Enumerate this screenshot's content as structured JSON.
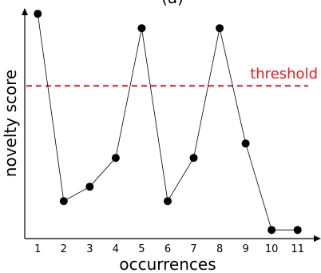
{
  "chart_data": {
    "type": "line",
    "title": "(a)",
    "xlabel": "occurrences",
    "ylabel": "novelty score",
    "x": [
      1,
      2,
      3,
      4,
      5,
      6,
      7,
      8,
      9,
      10,
      11
    ],
    "xlim": [
      0.5,
      11.9
    ],
    "ylim": [
      0,
      8
    ],
    "series": [
      {
        "values": [
          7.8,
          1.3,
          1.8,
          2.8,
          7.3,
          1.3,
          2.8,
          7.3,
          3.3,
          0.3,
          0.3
        ]
      }
    ],
    "threshold": {
      "label": "threshold",
      "value": 5.3
    },
    "grid": false,
    "colors": {
      "line": "#000000",
      "marker": "#000000",
      "threshold": "#e8191c"
    }
  }
}
